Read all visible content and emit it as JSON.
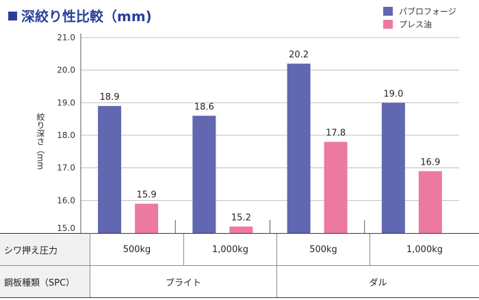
{
  "title": "深絞り性比較（mm)",
  "legend": [
    {
      "label": "パブロフォージ",
      "color": "#6167b0"
    },
    {
      "label": "プレス油",
      "color": "#ec7a9f"
    }
  ],
  "ylabel": "絞り深さ（mm",
  "table": {
    "row1_header": "シワ押え圧力",
    "row1_cells": [
      "500kg",
      "1,000kg",
      "500kg",
      "1,000kg"
    ],
    "row2_header": "鋼板種類（SPC）",
    "row2_cells": [
      "ブライト",
      "ダル"
    ]
  },
  "chart_data": {
    "type": "bar",
    "categories": [
      "500kg",
      "1,000kg",
      "500kg",
      "1,000kg"
    ],
    "groups": [
      "ブライト",
      "ダル"
    ],
    "series": [
      {
        "name": "パブロフォージ",
        "values": [
          18.9,
          18.6,
          20.2,
          19.0
        ],
        "labels": [
          "18.9",
          "18.6",
          "20.2",
          "19.0"
        ],
        "color": "#6167b0"
      },
      {
        "name": "プレス油",
        "values": [
          15.9,
          15.2,
          17.8,
          16.9
        ],
        "labels": [
          "15.9",
          "15.2",
          "17.8",
          "16.9"
        ],
        "color": "#ec7a9f"
      }
    ],
    "ylim": [
      15.0,
      21.0
    ],
    "yticks": [
      "15.0",
      "16.0",
      "17.0",
      "18.0",
      "19.0",
      "20.0",
      "21.0"
    ],
    "grid": true,
    "legend_position": "top-right"
  }
}
